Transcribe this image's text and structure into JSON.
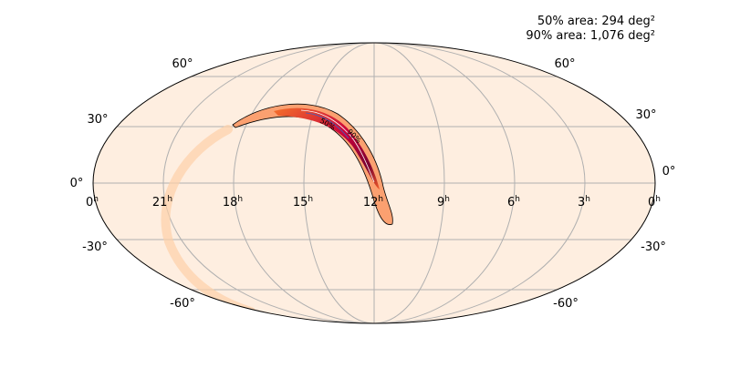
{
  "annotations": [
    "50% area: 294 deg²",
    "90% area: 1,076 deg²"
  ],
  "ra_labels": [
    {
      "hour": "0",
      "unit": "h"
    },
    {
      "hour": "21",
      "unit": "h"
    },
    {
      "hour": "18",
      "unit": "h"
    },
    {
      "hour": "15",
      "unit": "h"
    },
    {
      "hour": "12",
      "unit": "h"
    },
    {
      "hour": "9",
      "unit": "h"
    },
    {
      "hour": "6",
      "unit": "h"
    },
    {
      "hour": "3",
      "unit": "h"
    },
    {
      "hour": "0",
      "unit": "h"
    }
  ],
  "dec_labels_left": [
    "60°",
    "30°",
    "0°",
    "-30°",
    "-60°"
  ],
  "dec_labels_right": [
    "60°",
    "30°",
    "0°",
    "-30°",
    "-60°"
  ],
  "contour_labels": [
    "50%",
    "90%"
  ]
}
